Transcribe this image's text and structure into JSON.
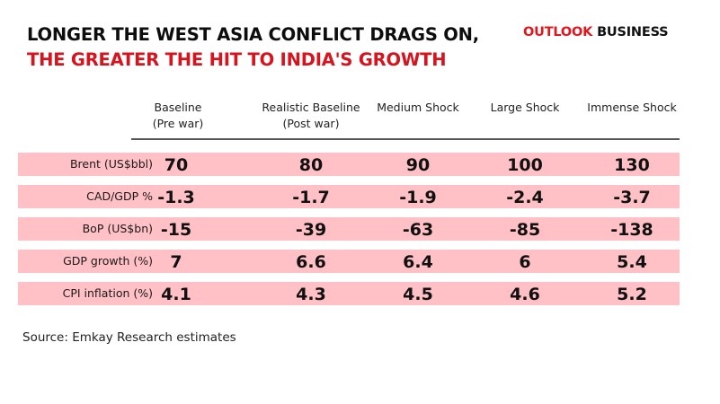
{
  "header": {
    "title_line1": "LONGER THE WEST ASIA CONFLICT DRAGS ON,",
    "title_line2": "THE GREATER THE HIT TO INDIA'S GROWTH",
    "brand_part1": "OUTLOOK",
    "brand_part2": "BUSINESS"
  },
  "colors": {
    "title_black": "#0d0d0d",
    "title_red": "#d7141e",
    "row_band": "#ffc0c6",
    "brand_red": "#e1171e"
  },
  "chart_data": {
    "type": "table",
    "title": "LONGER THE WEST ASIA CONFLICT DRAGS ON, THE GREATER THE HIT TO INDIA'S GROWTH",
    "columns": [
      {
        "line1": "Baseline",
        "line2": "(Pre war)"
      },
      {
        "line1": "Realistic Baseline",
        "line2": "(Post war)"
      },
      {
        "line1": "Medium Shock",
        "line2": ""
      },
      {
        "line1": "Large Shock",
        "line2": ""
      },
      {
        "line1": "Immense Shock",
        "line2": ""
      }
    ],
    "rows": [
      {
        "label": "Brent (US$bbl)",
        "values": [
          "70",
          "80",
          "90",
          "100",
          "130"
        ]
      },
      {
        "label": "CAD/GDP %",
        "values": [
          "-1.3",
          "-1.7",
          "-1.9",
          "-2.4",
          "-3.7"
        ]
      },
      {
        "label": "BoP (US$bn)",
        "values": [
          "-15",
          "-39",
          "-63",
          "-85",
          "-138"
        ]
      },
      {
        "label": "GDP growth (%)",
        "values": [
          "7",
          "6.6",
          "6.4",
          "6",
          "5.4"
        ]
      },
      {
        "label": "CPI inflation (%)",
        "values": [
          "4.1",
          "4.3",
          "4.5",
          "4.6",
          "5.2"
        ]
      }
    ],
    "source": "Source: Emkay Research estimates"
  }
}
